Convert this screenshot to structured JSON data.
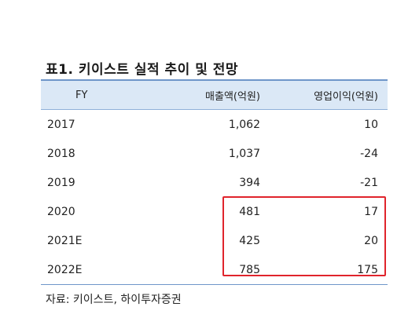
{
  "table": {
    "title": "표1.  키이스트 실적 추이 및 전망",
    "headers": [
      "FY",
      "매출액(억원)",
      "영업이익(억원)"
    ],
    "rows": [
      [
        "2017",
        "1,062",
        "10"
      ],
      [
        "2018",
        "1,037",
        "-24"
      ],
      [
        "2019",
        "394",
        "-21"
      ],
      [
        "2020",
        "481",
        "17"
      ],
      [
        "2021E",
        "425",
        "20"
      ],
      [
        "2022E",
        "785",
        "175"
      ]
    ],
    "source": "자료: 키이스트, 하이투자증권",
    "highlight_color": "#e0242c",
    "header_bg": "#dbe8f6"
  }
}
